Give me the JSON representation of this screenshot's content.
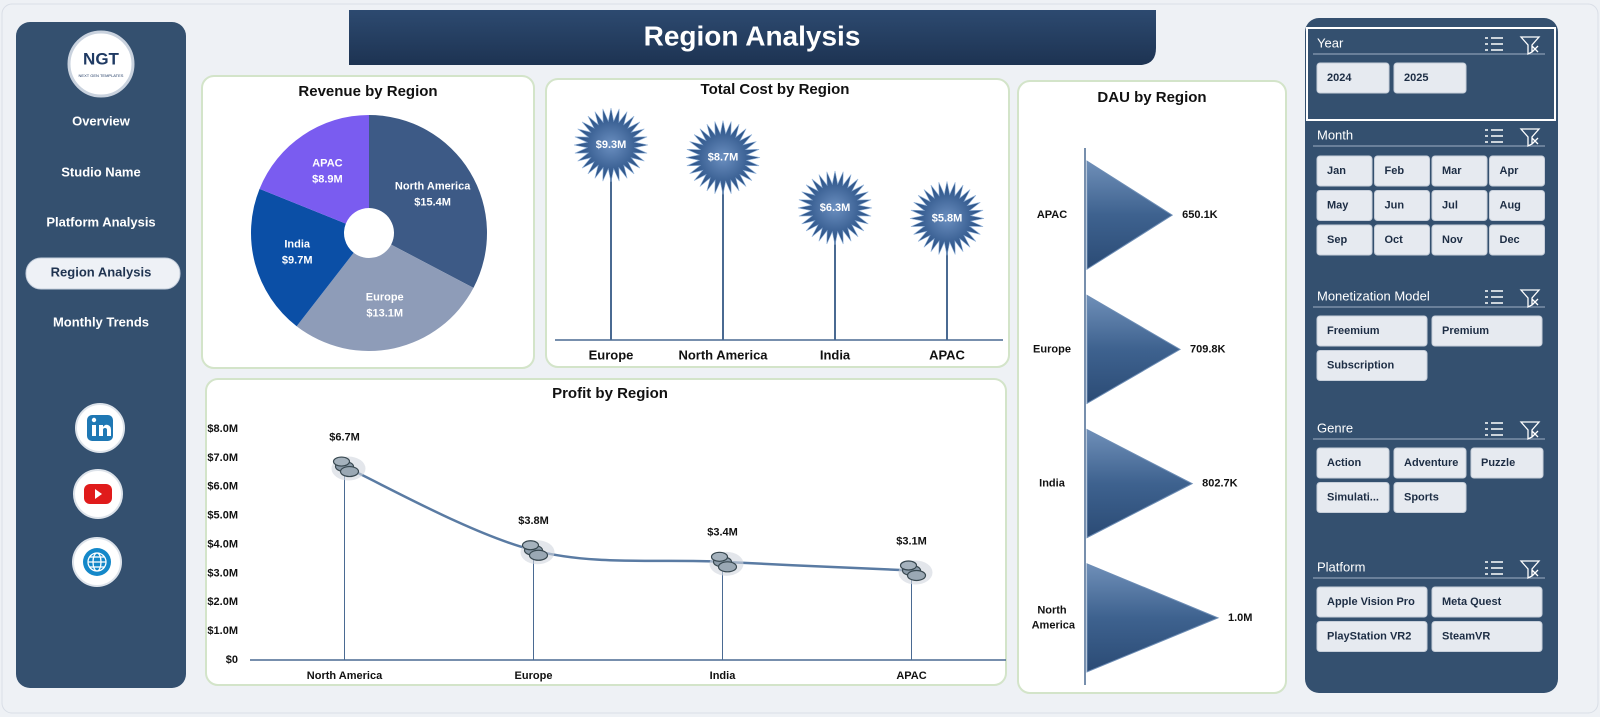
{
  "header": {
    "title": "Region Analysis"
  },
  "logo": {
    "text": "NGT",
    "subtitle": "NEXT GEN TEMPLATES"
  },
  "nav": [
    "Overview",
    "Studio Name",
    "Platform Analysis",
    "Region Analysis",
    "Monthly Trends"
  ],
  "slicers": [
    {
      "title": "Year",
      "items": [
        "2024",
        "2025"
      ]
    },
    {
      "title": "Month",
      "items": [
        "Jan",
        "Feb",
        "Mar",
        "Apr",
        "May",
        "Jun",
        "Jul",
        "Aug",
        "Sep",
        "Oct",
        "Nov",
        "Dec"
      ]
    },
    {
      "title": "Monetization Model",
      "items": [
        "Freemium",
        "Premium",
        "Subscription"
      ]
    },
    {
      "title": "Genre",
      "items": [
        "Action",
        "Adventure",
        "Puzzle",
        "Simulati...",
        "Sports"
      ]
    },
    {
      "title": "Platform",
      "items": [
        "Apple Vision Pro",
        "Meta Quest",
        "PlayStation VR2",
        "SteamVR"
      ]
    }
  ],
  "chart_data": [
    {
      "type": "pie",
      "title": "Revenue by Region",
      "categories": [
        "North America",
        "Europe",
        "India",
        "APAC"
      ],
      "values": [
        15.4,
        13.1,
        9.7,
        8.9
      ],
      "value_labels": [
        "$15.4M",
        "$13.1M",
        "$9.7M",
        "$8.9M"
      ],
      "colors": [
        "#3d5a86",
        "#8e9cb8",
        "#0b4fa6",
        "#7a5cf0"
      ]
    },
    {
      "type": "lollipop",
      "title": "Total Cost by Region",
      "categories": [
        "Europe",
        "North America",
        "India",
        "APAC"
      ],
      "values": [
        9.3,
        8.7,
        6.3,
        5.8
      ],
      "value_labels": [
        "$9.3M",
        "$8.7M",
        "$6.3M",
        "$5.8M"
      ],
      "color": "#2f5488"
    },
    {
      "type": "bar",
      "horizontal": true,
      "title": "DAU by Region",
      "categories": [
        "APAC",
        "Europe",
        "India",
        "North America"
      ],
      "values": [
        650100,
        709800,
        802700,
        1000000
      ],
      "value_labels": [
        "650.1K",
        "709.8K",
        "802.7K",
        "1.0M"
      ],
      "color": "#3e628f"
    },
    {
      "type": "line",
      "title": "Profit by Region",
      "categories": [
        "North America",
        "Europe",
        "India",
        "APAC"
      ],
      "values": [
        6.7,
        3.8,
        3.4,
        3.1
      ],
      "value_labels": [
        "$6.7M",
        "$3.8M",
        "$3.4M",
        "$3.1M"
      ],
      "ylim": [
        0,
        8
      ],
      "yticks": [
        {
          "value": 0,
          "label": "$0"
        },
        {
          "value": 1,
          "label": "$1.0M"
        },
        {
          "value": 2,
          "label": "$2.0M"
        },
        {
          "value": 3,
          "label": "$3.0M"
        },
        {
          "value": 4,
          "label": "$4.0M"
        },
        {
          "value": 5,
          "label": "$5.0M"
        },
        {
          "value": 6,
          "label": "$6.0M"
        },
        {
          "value": 7,
          "label": "$7.0M"
        },
        {
          "value": 8,
          "label": "$8.0M"
        }
      ],
      "color": "#5a7ba3"
    }
  ]
}
